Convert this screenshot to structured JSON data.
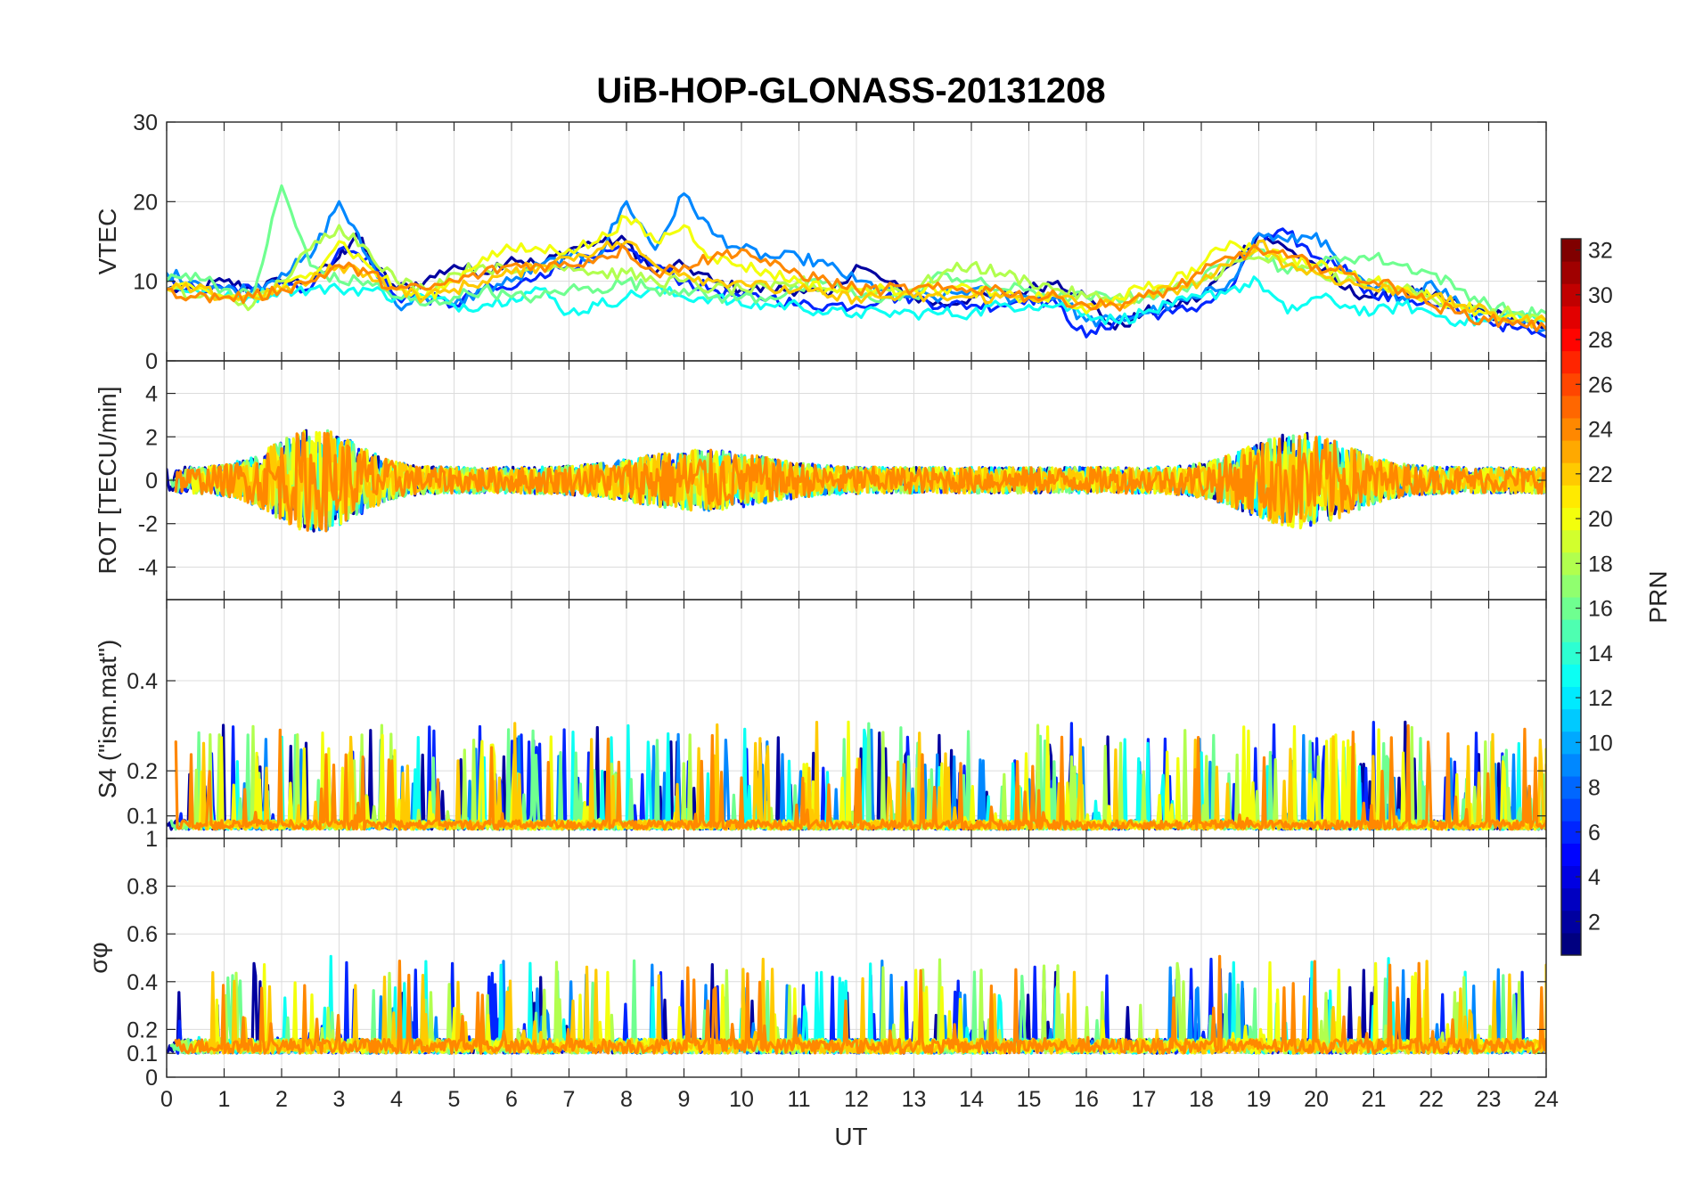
{
  "chart_data": {
    "type": "line",
    "title": "UiB-HOP-GLONASS-20131208",
    "xlabel": "UT",
    "xlim": [
      0,
      24
    ],
    "x_ticks": [
      "0",
      "1",
      "2",
      "3",
      "4",
      "5",
      "6",
      "7",
      "8",
      "9",
      "10",
      "11",
      "12",
      "13",
      "14",
      "15",
      "16",
      "17",
      "18",
      "19",
      "20",
      "21",
      "22",
      "23",
      "24"
    ],
    "grid": true,
    "panels": [
      {
        "ylabel": "VTEC",
        "ylim": [
          0,
          30
        ],
        "y_ticks": [
          "0",
          "10",
          "20",
          "30"
        ],
        "y_values": [
          0,
          10,
          20,
          30
        ],
        "series": [
          {
            "prn": 2,
            "x": [
              0,
              0.5,
              1,
              1.5,
              2,
              2.5,
              3,
              3.3,
              3.6,
              4,
              4.5,
              5,
              5.5,
              6,
              6.5,
              7,
              7.5,
              8,
              8.5,
              9,
              9.5,
              10,
              10.5,
              11,
              11.5,
              12,
              12.5,
              13,
              13.5,
              14,
              14.5,
              15,
              15.5,
              16,
              16.5,
              17,
              17.5,
              18,
              18.5,
              19,
              19.5,
              20,
              20.5,
              21,
              21.5,
              22,
              22.5,
              23,
              23.5,
              24
            ],
            "y": [
              9,
              9,
              10,
              9,
              10,
              10,
              13,
              16,
              12,
              9,
              10,
              12,
              11,
              13,
              12,
              14,
              15,
              15,
              11,
              12,
              10,
              9,
              9,
              9,
              8,
              12,
              10,
              8,
              7,
              8,
              8,
              9,
              10,
              8,
              4,
              6,
              7,
              8,
              12,
              16,
              14,
              12,
              9,
              8,
              9,
              8,
              7,
              6,
              5,
              4
            ]
          },
          {
            "prn": 6,
            "x": [
              0,
              0.5,
              1,
              1.5,
              2,
              2.5,
              3,
              3.5,
              4,
              4.5,
              5,
              5.5,
              6,
              6.5,
              7,
              7.5,
              8,
              8.5,
              9,
              9.5,
              10,
              10.5,
              11,
              11.5,
              12,
              12.5,
              13,
              13.5,
              14,
              14.5,
              15,
              15.5,
              16,
              16.5,
              17,
              17.5,
              18,
              18.5,
              19,
              19.5,
              20,
              20.5,
              21,
              21.5,
              22,
              22.5,
              23,
              23.5,
              24
            ],
            "y": [
              10,
              9,
              9,
              9,
              10,
              9,
              14,
              13,
              8,
              8,
              7,
              9,
              9,
              11,
              12,
              13,
              14,
              12,
              10,
              9,
              8,
              8,
              7,
              7,
              7,
              8,
              8,
              7,
              7,
              7,
              8,
              7,
              3,
              5,
              6,
              6,
              7,
              9,
              15,
              16,
              13,
              12,
              8,
              8,
              7,
              6,
              5,
              4,
              3
            ]
          },
          {
            "prn": 9,
            "x": [
              0,
              0.5,
              1,
              1.5,
              2,
              2.5,
              3,
              3.5,
              4,
              4.5,
              5,
              5.5,
              6,
              6.5,
              7,
              7.5,
              8,
              8.5,
              9,
              9.5,
              10,
              10.5,
              11,
              11.5,
              12,
              12.5,
              13,
              13.5,
              14,
              14.5,
              15,
              15.5,
              16,
              16.5,
              17,
              17.5,
              18,
              18.5,
              19,
              19.5,
              20,
              20.5,
              21,
              21.5,
              22,
              22.5,
              23,
              23.5,
              24
            ],
            "y": [
              11,
              10,
              9,
              9,
              11,
              13,
              20,
              13,
              7,
              8,
              7,
              9,
              10,
              12,
              13,
              13,
              20,
              14,
              21,
              16,
              14,
              13,
              13,
              12,
              10,
              9,
              8,
              8,
              9,
              8,
              8,
              8,
              5,
              5,
              6,
              7,
              8,
              10,
              16,
              15,
              16,
              11,
              9,
              8,
              10,
              7,
              6,
              5,
              4
            ]
          },
          {
            "prn": 13,
            "x": [
              0,
              0.5,
              1,
              1.5,
              2,
              2.5,
              3,
              3.5,
              4,
              4.5,
              5,
              5.5,
              6,
              6.5,
              7,
              7.5,
              8,
              8.5,
              9,
              9.5,
              10,
              10.5,
              11,
              11.5,
              12,
              12.5,
              13,
              13.5,
              14,
              14.5,
              15,
              15.5,
              16,
              16.5,
              17,
              17.5,
              18,
              18.5,
              19,
              19.5,
              20,
              20.5,
              21,
              21.5,
              22,
              22.5,
              23,
              23.5,
              24
            ],
            "y": [
              9,
              9,
              8,
              8,
              9,
              9,
              9,
              9,
              8,
              8,
              7,
              7,
              8,
              9,
              6,
              7,
              8,
              9,
              8,
              8,
              7,
              7,
              7,
              6,
              6,
              6,
              6,
              6,
              6,
              7,
              7,
              7,
              6,
              5,
              6,
              7,
              8,
              9,
              10,
              6,
              8,
              7,
              6,
              7,
              6,
              5,
              5,
              6,
              5
            ]
          },
          {
            "prn": 16,
            "x": [
              0,
              0.5,
              1,
              1.5,
              2,
              2.5,
              3,
              3.5,
              4,
              4.5,
              5,
              5.5,
              6,
              6.5,
              7,
              7.5,
              8,
              8.5,
              9,
              9.5,
              10,
              10.5,
              11,
              11.5,
              12,
              12.5,
              13,
              13.5,
              14,
              14.5,
              15,
              15.5,
              16,
              16.5,
              17,
              17.5,
              18,
              18.5,
              19,
              19.5,
              20,
              20.5,
              21,
              21.5,
              22,
              22.5,
              23,
              23.5,
              24
            ],
            "y": [
              10,
              11,
              9,
              8,
              22,
              12,
              10,
              10,
              8,
              7,
              8,
              9,
              8,
              8,
              9,
              9,
              10,
              9,
              9,
              8,
              8,
              8,
              9,
              10,
              8,
              8,
              8,
              11,
              10,
              9,
              9,
              8,
              8,
              8,
              8,
              9,
              10,
              13,
              14,
              11,
              12,
              13,
              13,
              12,
              11,
              9,
              7,
              6,
              6
            ]
          },
          {
            "prn": 18,
            "x": [
              0,
              0.5,
              1,
              1.5,
              2,
              2.5,
              3,
              3.5,
              4,
              4.5,
              5,
              5.5,
              6,
              6.5,
              7,
              7.5,
              8,
              8.5,
              9,
              9.5,
              10,
              10.5,
              11,
              11.5,
              12,
              12.5,
              13,
              13.5,
              14,
              14.5,
              15,
              15.5,
              16,
              16.5,
              17,
              17.5,
              18,
              18.5,
              19,
              19.5,
              20,
              20.5,
              21,
              21.5,
              22,
              22.5,
              23,
              23.5,
              24
            ],
            "y": [
              9,
              8,
              8,
              7,
              10,
              14,
              17,
              14,
              10,
              9,
              11,
              12,
              11,
              12,
              12,
              11,
              11,
              10,
              10,
              9,
              9,
              9,
              10,
              9,
              9,
              9,
              9,
              11,
              12,
              11,
              10,
              9,
              8,
              8,
              8,
              9,
              10,
              12,
              13,
              12,
              11,
              10,
              10,
              9,
              8,
              7,
              6,
              6,
              5
            ]
          },
          {
            "prn": 20,
            "x": [
              0,
              0.5,
              1,
              1.5,
              2,
              2.5,
              3,
              3.5,
              4,
              4.5,
              5,
              5.5,
              6,
              6.5,
              7,
              7.5,
              8,
              8.5,
              9,
              9.5,
              10,
              10.5,
              11,
              11.5,
              12,
              12.5,
              13,
              13.5,
              14,
              14.5,
              15,
              15.5,
              16,
              16.5,
              17,
              17.5,
              18,
              18.5,
              19,
              19.5,
              20,
              20.5,
              21,
              21.5,
              22,
              22.5,
              23,
              23.5,
              24
            ],
            "y": [
              9,
              9,
              8,
              8,
              9,
              11,
              15,
              12,
              9,
              8,
              10,
              13,
              14,
              14,
              14,
              15,
              18,
              15,
              17,
              13,
              12,
              11,
              10,
              9,
              9,
              9,
              9,
              9,
              9,
              8,
              8,
              8,
              6,
              8,
              9,
              10,
              12,
              15,
              14,
              13,
              12,
              11,
              10,
              9,
              8,
              7,
              6,
              5,
              5
            ]
          },
          {
            "prn": 22,
            "x": [
              0,
              0.5,
              1,
              1.5,
              2,
              2.5,
              3,
              3.5,
              4,
              4.5,
              5,
              5.5,
              6,
              6.5,
              7,
              7.5,
              8,
              8.5,
              9,
              9.5,
              10,
              10.5,
              11,
              11.5,
              12,
              12.5,
              13,
              13.5,
              14,
              14.5,
              15,
              15.5,
              16,
              16.5,
              17,
              17.5,
              18,
              18.5,
              19,
              19.5,
              20,
              20.5,
              21,
              21.5,
              22,
              22.5,
              23,
              23.5,
              24
            ],
            "y": [
              9,
              9,
              8,
              8,
              9,
              10,
              12,
              11,
              9,
              8,
              9,
              10,
              11,
              12,
              13,
              14,
              15,
              12,
              11,
              10,
              10,
              9,
              9,
              8,
              8,
              8,
              8,
              8,
              8,
              8,
              8,
              8,
              7,
              7,
              8,
              9,
              10,
              12,
              15,
              12,
              11,
              10,
              9,
              9,
              8,
              7,
              6,
              5,
              5
            ]
          },
          {
            "prn": 24,
            "x": [
              0,
              0.5,
              1,
              1.5,
              2,
              2.5,
              3,
              3.5,
              4,
              4.5,
              5,
              5.5,
              6,
              6.5,
              7,
              7.5,
              8,
              8.5,
              9,
              9.5,
              10,
              10.5,
              11,
              11.5,
              12,
              12.5,
              13,
              13.5,
              14,
              14.5,
              15,
              15.5,
              16,
              16.5,
              17,
              17.5,
              18,
              18.5,
              19,
              19.5,
              20,
              20.5,
              21,
              21.5,
              22,
              22.5,
              23,
              23.5,
              24
            ],
            "y": [
              9,
              8,
              8,
              8,
              9,
              10,
              12,
              11,
              9,
              9,
              10,
              11,
              12,
              12,
              12,
              13,
              14,
              11,
              12,
              13,
              14,
              12,
              11,
              10,
              9,
              9,
              9,
              9,
              9,
              9,
              8,
              8,
              7,
              7,
              8,
              9,
              11,
              13,
              14,
              13,
              12,
              11,
              10,
              9,
              7,
              6,
              5,
              5,
              4
            ]
          }
        ]
      },
      {
        "ylabel": "ROT [TECU/min]",
        "ylim": [
          -5.5,
          5.5
        ],
        "y_ticks": [
          "-4",
          "-2",
          "0",
          "2",
          "4"
        ],
        "y_values": [
          -4,
          -2,
          0,
          2,
          4
        ]
      },
      {
        "ylabel": "S4 (\"ism.mat\")",
        "ylim": [
          0.05,
          0.58
        ],
        "y_ticks": [
          "0.1",
          "0.2",
          "0.4"
        ],
        "y_values": [
          0.1,
          0.2,
          0.4
        ]
      },
      {
        "ylabel": "σφ",
        "ylim": [
          0,
          1
        ],
        "y_ticks": [
          "0",
          "0.1",
          "0.2",
          "0.4",
          "0.6",
          "0.8",
          "1"
        ],
        "y_values": [
          0,
          0.1,
          0.2,
          0.4,
          0.6,
          0.8,
          1
        ]
      }
    ],
    "colorbar": {
      "label": "PRN",
      "range": [
        1,
        32
      ],
      "colormap": "jet",
      "ticks": [
        "2",
        "4",
        "6",
        "8",
        "10",
        "12",
        "14",
        "16",
        "18",
        "20",
        "22",
        "24",
        "26",
        "28",
        "30",
        "32"
      ]
    },
    "series_prns": [
      2,
      6,
      9,
      13,
      16,
      18,
      20,
      22,
      24
    ]
  }
}
